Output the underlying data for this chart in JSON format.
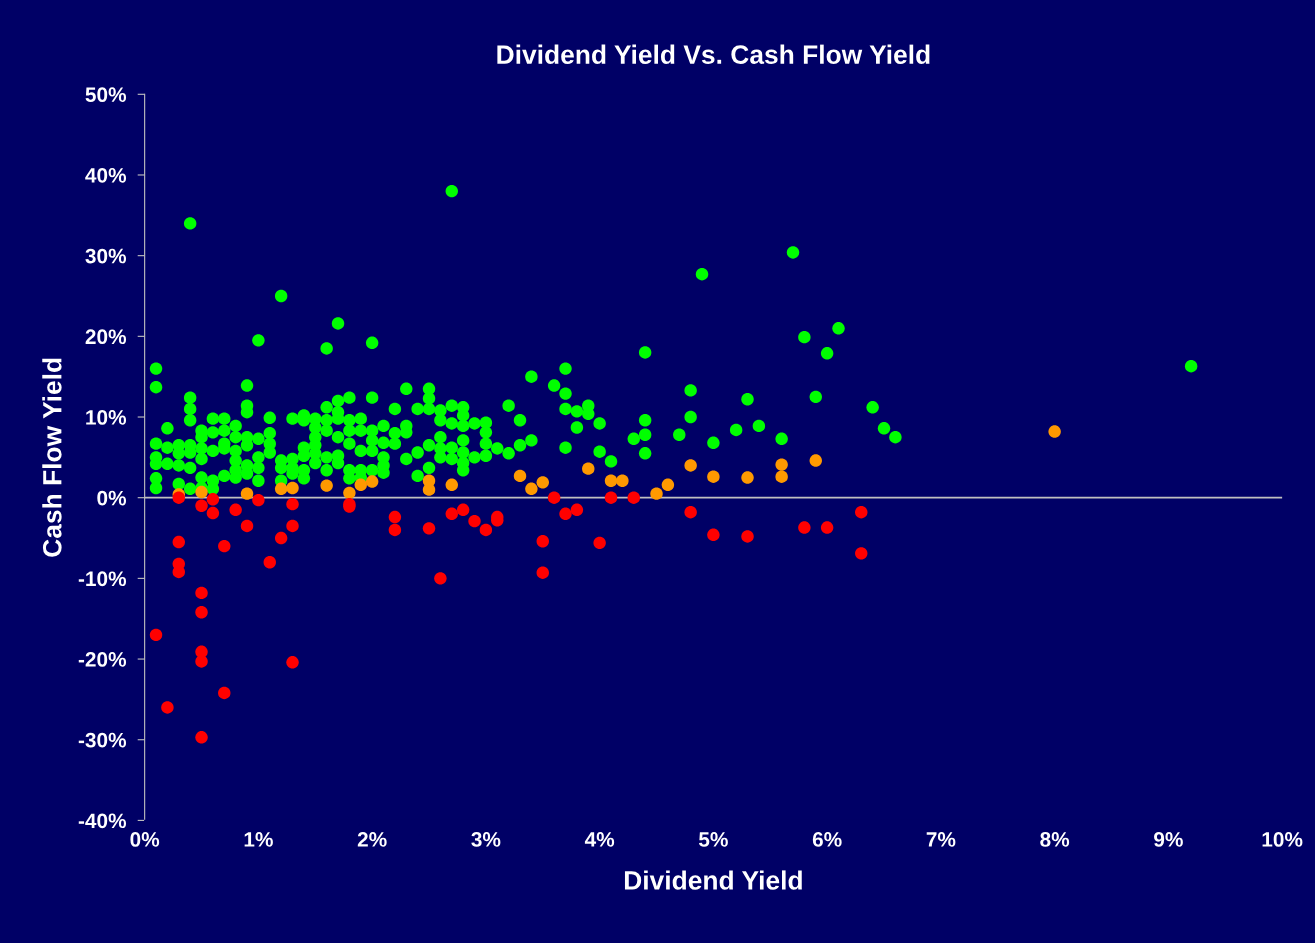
{
  "chart_data": {
    "type": "scatter",
    "title": "Dividend Yield Vs. Cash Flow Yield",
    "xlabel": "Dividend Yield",
    "ylabel": "Cash Flow Yield",
    "xlim": [
      0,
      10
    ],
    "ylim": [
      -40,
      50
    ],
    "xticks": [
      {
        "value": 0,
        "label": "0%"
      },
      {
        "value": 1,
        "label": "1%"
      },
      {
        "value": 2,
        "label": "2%"
      },
      {
        "value": 3,
        "label": "3%"
      },
      {
        "value": 4,
        "label": "4%"
      },
      {
        "value": 5,
        "label": "5%"
      },
      {
        "value": 6,
        "label": "6%"
      },
      {
        "value": 7,
        "label": "7%"
      },
      {
        "value": 8,
        "label": "8%"
      },
      {
        "value": 9,
        "label": "9%"
      },
      {
        "value": 10,
        "label": "10%"
      }
    ],
    "yticks": [
      {
        "value": -40,
        "label": "-40%"
      },
      {
        "value": -30,
        "label": "-30%"
      },
      {
        "value": -20,
        "label": "-20%"
      },
      {
        "value": -10,
        "label": "-10%"
      },
      {
        "value": 0,
        "label": "0%"
      },
      {
        "value": 10,
        "label": "10%"
      },
      {
        "value": 20,
        "label": "20%"
      },
      {
        "value": 30,
        "label": "30%"
      },
      {
        "value": 40,
        "label": "40%"
      },
      {
        "value": 50,
        "label": "50%"
      }
    ],
    "grid": false,
    "marker": "circle",
    "ref_lines": [
      {
        "axis": "y",
        "value": 0,
        "color": "#c0c0c0"
      }
    ],
    "series": [
      {
        "color": "#00ff00",
        "x": [
          0.1,
          0.1,
          0.1,
          0.1,
          0.1,
          0.1,
          0.1,
          0.2,
          0.2,
          0.2,
          0.3,
          0.3,
          0.3,
          0.3,
          0.4,
          0.4,
          0.4,
          0.4,
          0.4,
          0.4,
          0.4,
          0.4,
          0.5,
          0.5,
          0.5,
          0.5,
          0.5,
          0.5,
          0.6,
          0.6,
          0.6,
          0.6,
          0.6,
          0.7,
          0.7,
          0.7,
          0.7,
          0.7,
          0.8,
          0.8,
          0.8,
          0.8,
          0.8,
          0.8,
          0.9,
          0.9,
          0.9,
          0.9,
          0.9,
          0.9,
          0.9,
          1.0,
          1.0,
          1.0,
          1.0,
          1.0,
          1.1,
          1.1,
          1.1,
          1.1,
          1.2,
          1.2,
          1.2,
          1.2,
          1.3,
          1.3,
          1.3,
          1.3,
          1.4,
          1.4,
          1.4,
          1.4,
          1.4,
          1.4,
          1.5,
          1.5,
          1.5,
          1.5,
          1.5,
          1.5,
          1.6,
          1.6,
          1.6,
          1.6,
          1.6,
          1.6,
          1.7,
          1.7,
          1.7,
          1.7,
          1.7,
          1.7,
          1.7,
          1.8,
          1.8,
          1.8,
          1.8,
          1.8,
          1.8,
          1.9,
          1.9,
          1.9,
          1.9,
          1.9,
          2.0,
          2.0,
          2.0,
          2.0,
          2.0,
          2.0,
          2.1,
          2.1,
          2.1,
          2.1,
          2.1,
          2.2,
          2.2,
          2.2,
          2.3,
          2.3,
          2.3,
          2.3,
          2.4,
          2.4,
          2.4,
          2.5,
          2.5,
          2.5,
          2.5,
          2.5,
          2.6,
          2.6,
          2.6,
          2.6,
          2.6,
          2.7,
          2.7,
          2.7,
          2.7,
          2.7,
          2.8,
          2.8,
          2.8,
          2.8,
          2.8,
          2.8,
          2.8,
          2.9,
          2.9,
          3.0,
          3.0,
          3.0,
          3.0,
          3.1,
          3.2,
          3.2,
          3.3,
          3.3,
          3.4,
          3.4,
          3.6,
          3.7,
          3.7,
          3.7,
          3.7,
          3.8,
          3.8,
          3.9,
          3.9,
          4.0,
          4.0,
          4.1,
          4.3,
          4.4,
          4.4,
          4.4,
          4.4,
          4.7,
          4.8,
          4.8,
          4.9,
          5.0,
          5.2,
          5.3,
          5.4,
          5.6,
          5.7,
          5.8,
          5.9,
          6.0,
          6.1,
          6.4,
          6.5,
          6.6,
          9.2
        ],
        "values": [
          16,
          13.7,
          6.7,
          5,
          4.2,
          2.4,
          1.2,
          8.6,
          6.2,
          4.2,
          6.5,
          5.5,
          4,
          1.7,
          34,
          12.4,
          11,
          9.6,
          6.5,
          5.6,
          3.7,
          1.1,
          8.3,
          7.5,
          6.1,
          4.8,
          2.5,
          1.2,
          9.8,
          8.1,
          5.8,
          2.1,
          1.1,
          9.8,
          8.3,
          6.7,
          6.1,
          2.7,
          8.9,
          7.5,
          5.8,
          4.6,
          3.4,
          2.5,
          13.9,
          11.4,
          10.6,
          7.5,
          6.5,
          4,
          3,
          19.5,
          7.3,
          5,
          3.7,
          2.1,
          9.9,
          8,
          6.7,
          5.6,
          25,
          4.6,
          3.7,
          2.1,
          9.8,
          4.8,
          3.7,
          3,
          10.2,
          9.6,
          6.2,
          5.2,
          3.4,
          2.4,
          9.8,
          8.7,
          7.5,
          6.5,
          5.5,
          4.3,
          18.5,
          11.2,
          9.6,
          8.3,
          5,
          3.4,
          21.6,
          12,
          10.6,
          9.8,
          7.5,
          5.2,
          4.3,
          12.4,
          9.6,
          8.3,
          6.7,
          3.4,
          2.4,
          9.8,
          8.3,
          5.8,
          3.4,
          2.5,
          19.2,
          12.4,
          8.3,
          7.1,
          5.8,
          3.4,
          8.9,
          6.8,
          5,
          4,
          3.1,
          11,
          8,
          6.7,
          13.5,
          8.9,
          8.1,
          4.8,
          11,
          5.6,
          2.7,
          13.5,
          12.3,
          11,
          6.5,
          3.7,
          10.8,
          9.6,
          7.5,
          6.1,
          5,
          38,
          11.4,
          9.2,
          6.2,
          4.8,
          11.2,
          10.2,
          8.9,
          7.1,
          5.6,
          4.3,
          3.4,
          9.2,
          5,
          9.3,
          8.1,
          6.7,
          5.2,
          6.1,
          11.4,
          5.5,
          9.6,
          6.5,
          15,
          7.1,
          13.9,
          16,
          12.9,
          11,
          6.2,
          10.7,
          8.7,
          11.4,
          10.4,
          9.2,
          5.7,
          4.5,
          7.3,
          18,
          9.6,
          7.8,
          5.5,
          7.8,
          13.3,
          10,
          27.7,
          6.8,
          8.4,
          12.2,
          8.9,
          7.3,
          30.4,
          19.9,
          12.5,
          17.9,
          21,
          11.2,
          8.6,
          7.5,
          16.3
        ]
      },
      {
        "color": "#ff9900",
        "x": [
          0.3,
          0.5,
          0.9,
          1.2,
          1.3,
          1.6,
          1.8,
          1.9,
          2.0,
          2.5,
          2.5,
          2.7,
          3.3,
          3.4,
          3.5,
          3.9,
          4.1,
          4.2,
          4.5,
          4.6,
          4.8,
          5.0,
          5.3,
          5.6,
          5.6,
          5.9,
          8.0
        ],
        "values": [
          0.4,
          0.7,
          0.5,
          1.1,
          1.2,
          1.5,
          0.6,
          1.6,
          2,
          2.1,
          1,
          1.6,
          2.7,
          1.1,
          1.9,
          3.6,
          2.1,
          2.1,
          0.5,
          1.6,
          4,
          2.6,
          2.5,
          4.1,
          2.6,
          4.6,
          8.2
        ]
      },
      {
        "color": "#ff0000",
        "x": [
          0.1,
          0.2,
          0.3,
          0.3,
          0.3,
          0.3,
          0.5,
          0.5,
          0.5,
          0.5,
          0.5,
          0.5,
          0.6,
          0.6,
          0.7,
          0.7,
          0.8,
          0.9,
          1.0,
          1.1,
          1.2,
          1.3,
          1.3,
          1.3,
          1.8,
          1.8,
          2.2,
          2.2,
          2.5,
          2.6,
          2.7,
          2.8,
          2.9,
          3.0,
          3.1,
          3.1,
          3.5,
          3.5,
          3.6,
          3.7,
          3.8,
          4.0,
          4.1,
          4.3,
          4.8,
          5.0,
          5.3,
          5.8,
          6.0,
          6.3,
          6.3
        ],
        "values": [
          -17,
          -26,
          -5.5,
          -8.2,
          -9.2,
          0,
          -1,
          -11.8,
          -14.2,
          -19.1,
          -20.3,
          -29.7,
          -0.2,
          -1.9,
          -6,
          -24.2,
          -1.5,
          -3.5,
          -0.3,
          -8,
          -5,
          -0.8,
          -3.5,
          -20.4,
          -0.8,
          -1.1,
          -2.4,
          -4,
          -3.8,
          -10,
          -2,
          -1.5,
          -2.9,
          -4,
          -2.4,
          -2.8,
          -5.4,
          -9.3,
          0,
          -2,
          -1.5,
          -5.6,
          0,
          0,
          -1.8,
          -4.6,
          -4.8,
          -3.7,
          -3.7,
          -1.8,
          -6.9
        ]
      }
    ]
  }
}
